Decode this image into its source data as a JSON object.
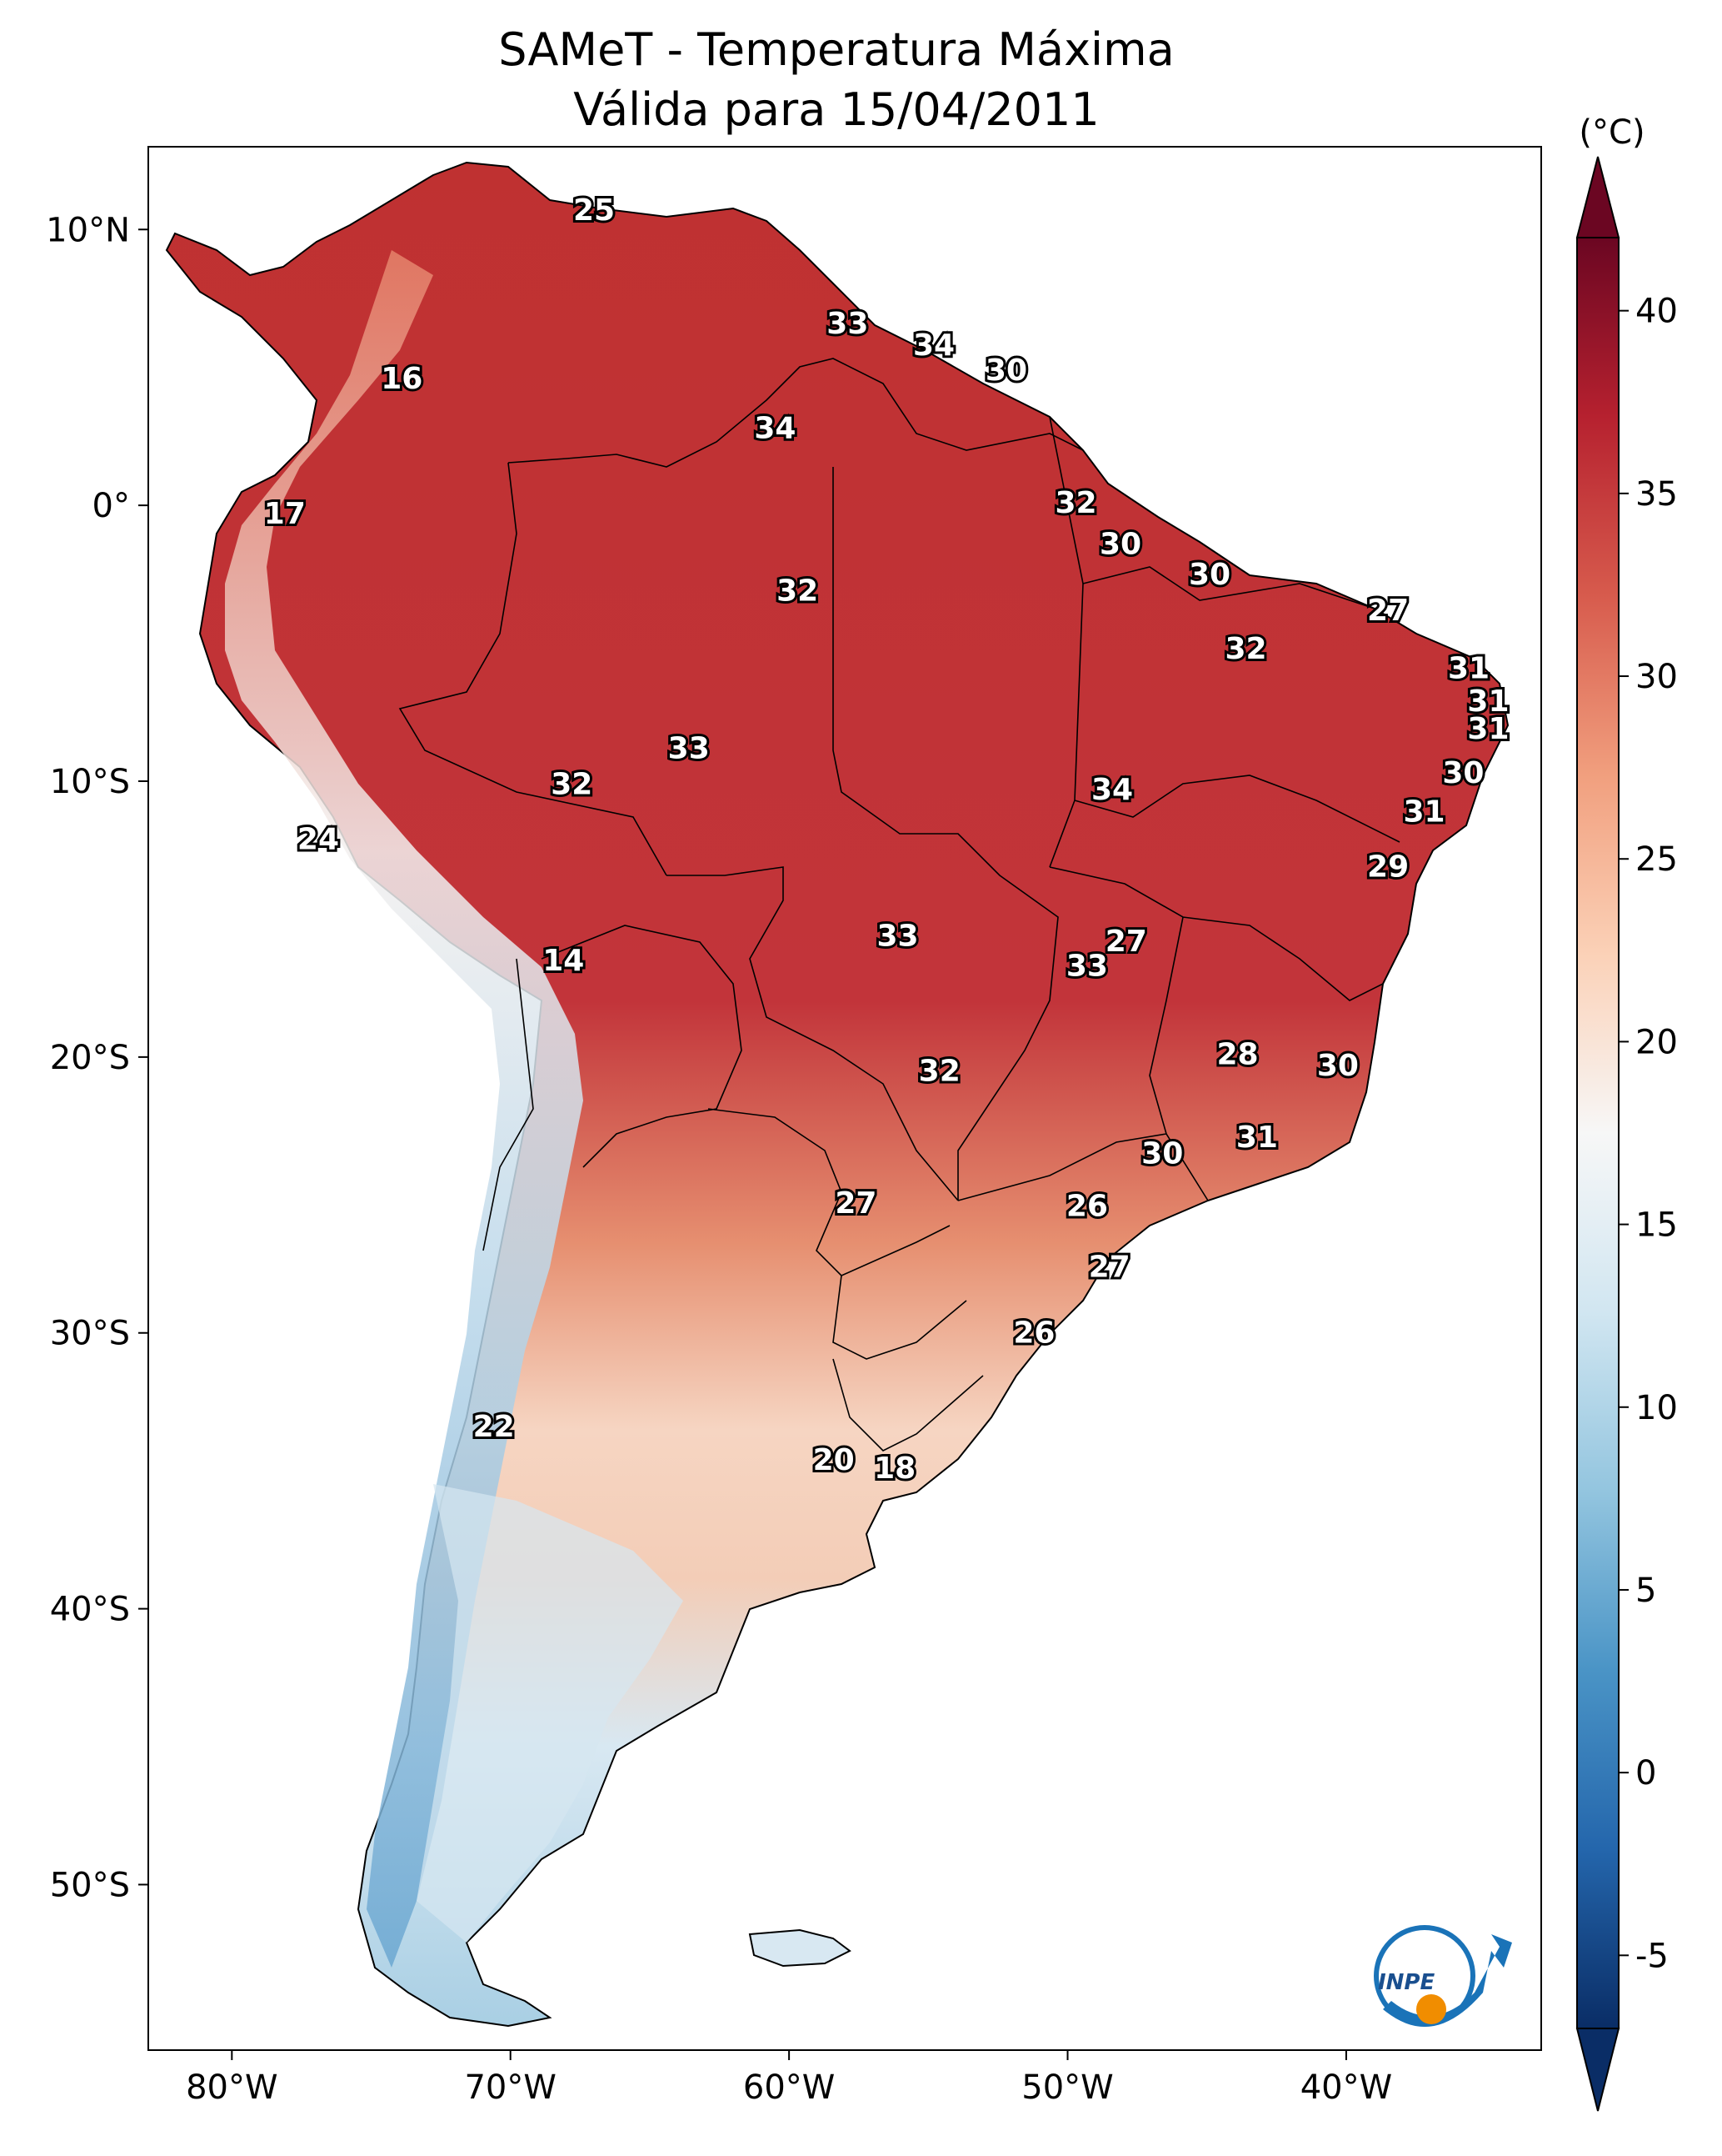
{
  "title": {
    "line1": "SAMeT - Temperatura Máxima",
    "line2": "Válida para 15/04/2011"
  },
  "map": {
    "lat_ticks": [
      "10°N",
      "0°",
      "10°S",
      "20°S",
      "30°S",
      "40°S",
      "50°S"
    ],
    "lon_ticks": [
      "80°W",
      "70°W",
      "60°W",
      "50°W",
      "40°W"
    ],
    "lat_values": [
      10,
      0,
      -10,
      -20,
      -30,
      -40,
      -50
    ],
    "lon_values": [
      -80,
      -70,
      -60,
      -50,
      -40
    ],
    "extent": {
      "lon_min": -83,
      "lon_max": -33,
      "lat_min": -56,
      "lat_max": 13
    }
  },
  "colorbar": {
    "unit": "(°C)",
    "ticks": [
      "40",
      "35",
      "30",
      "25",
      "20",
      "15",
      "10",
      "5",
      "0",
      "-5"
    ],
    "tick_values": [
      40,
      35,
      30,
      25,
      20,
      15,
      10,
      5,
      0,
      -5
    ],
    "range": [
      -7,
      42
    ],
    "colors": [
      "#0a2d66",
      "#2466ac",
      "#4a94c6",
      "#93c5df",
      "#d1e6f1",
      "#f7f7f7",
      "#fbd1b7",
      "#f19f7e",
      "#d75b4d",
      "#b6212f",
      "#6b0622"
    ]
  },
  "city_values": [
    {
      "value": "25",
      "lon": -67,
      "lat": 10.7
    },
    {
      "value": "33",
      "lon": -57.9,
      "lat": 6.6
    },
    {
      "value": "34",
      "lon": -54.8,
      "lat": 5.8
    },
    {
      "value": "30",
      "lon": -52.2,
      "lat": 4.9
    },
    {
      "value": "16",
      "lon": -73.9,
      "lat": 4.6
    },
    {
      "value": "34",
      "lon": -60.5,
      "lat": 2.8
    },
    {
      "value": "17",
      "lon": -78.1,
      "lat": -0.3
    },
    {
      "value": "32",
      "lon": -49.7,
      "lat": 0.1
    },
    {
      "value": "30",
      "lon": -48.1,
      "lat": -1.4
    },
    {
      "value": "30",
      "lon": -44.9,
      "lat": -2.5
    },
    {
      "value": "32",
      "lon": -59.7,
      "lat": -3.1
    },
    {
      "value": "27",
      "lon": -38.5,
      "lat": -3.8
    },
    {
      "value": "32",
      "lon": -43.6,
      "lat": -5.2
    },
    {
      "value": "31",
      "lon": -35.6,
      "lat": -5.9
    },
    {
      "value": "31",
      "lon": -34.9,
      "lat": -7.1
    },
    {
      "value": "31",
      "lon": -34.9,
      "lat": -8.1
    },
    {
      "value": "33",
      "lon": -63.6,
      "lat": -8.8
    },
    {
      "value": "30",
      "lon": -35.8,
      "lat": -9.7
    },
    {
      "value": "32",
      "lon": -67.8,
      "lat": -10.1
    },
    {
      "value": "34",
      "lon": -48.4,
      "lat": -10.3
    },
    {
      "value": "31",
      "lon": -37.2,
      "lat": -11.1
    },
    {
      "value": "24",
      "lon": -76.9,
      "lat": -12.1
    },
    {
      "value": "29",
      "lon": -38.5,
      "lat": -13.1
    },
    {
      "value": "27",
      "lon": -47.9,
      "lat": -15.8
    },
    {
      "value": "33",
      "lon": -56.1,
      "lat": -15.6
    },
    {
      "value": "14",
      "lon": -68.1,
      "lat": -16.5
    },
    {
      "value": "33",
      "lon": -49.3,
      "lat": -16.7
    },
    {
      "value": "28",
      "lon": -43.9,
      "lat": -19.9
    },
    {
      "value": "30",
      "lon": -40.3,
      "lat": -20.3
    },
    {
      "value": "32",
      "lon": -54.6,
      "lat": -20.5
    },
    {
      "value": "31",
      "lon": -43.2,
      "lat": -22.9
    },
    {
      "value": "30",
      "lon": -46.6,
      "lat": -23.5
    },
    {
      "value": "26",
      "lon": -49.3,
      "lat": -25.4
    },
    {
      "value": "27",
      "lon": -57.6,
      "lat": -25.3
    },
    {
      "value": "27",
      "lon": -48.5,
      "lat": -27.6
    },
    {
      "value": "26",
      "lon": -51.2,
      "lat": -30.0
    },
    {
      "value": "22",
      "lon": -70.6,
      "lat": -33.4
    },
    {
      "value": "20",
      "lon": -58.4,
      "lat": -34.6
    },
    {
      "value": "18",
      "lon": -56.2,
      "lat": -34.9
    }
  ],
  "logo": {
    "text": "INPE"
  }
}
